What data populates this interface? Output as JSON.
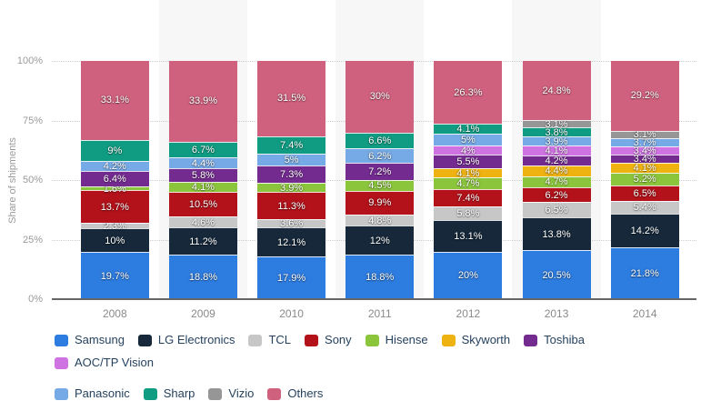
{
  "y_axis": {
    "title": "Share of shipments",
    "ticks": [
      {
        "label": "0%",
        "value": 0
      },
      {
        "label": "25%",
        "value": 25
      },
      {
        "label": "50%",
        "value": 50
      },
      {
        "label": "75%",
        "value": 75
      },
      {
        "label": "100%",
        "value": 100
      }
    ]
  },
  "chart_data": {
    "type": "bar",
    "stacked": true,
    "unit": "%",
    "title": "",
    "xlabel": "",
    "ylabel": "Share of shipments",
    "ylim": [
      0,
      100
    ],
    "grid": "dotted-horizontal",
    "legend_position": "bottom",
    "categories": [
      "2008",
      "2009",
      "2010",
      "2011",
      "2012",
      "2013",
      "2014"
    ],
    "series": [
      {
        "name": "Samsung",
        "color": "#2d7ce0",
        "values": [
          19.7,
          18.8,
          17.9,
          18.8,
          20,
          20.5,
          21.8
        ]
      },
      {
        "name": "LG Electronics",
        "color": "#16283a",
        "values": [
          10,
          11.2,
          12.1,
          12,
          13.1,
          13.8,
          14.2
        ]
      },
      {
        "name": "TCL",
        "color": "#c7c7c7",
        "values": [
          2.3,
          4.6,
          3.6,
          4.8,
          5.8,
          6.5,
          5.4
        ]
      },
      {
        "name": "Sony",
        "color": "#b3121a",
        "values": [
          13.7,
          10.5,
          11.3,
          9.9,
          7.4,
          6.2,
          6.5
        ]
      },
      {
        "name": "Hisense",
        "color": "#8bc53c",
        "values": [
          1.6,
          4.1,
          3.9,
          4.5,
          4.7,
          4.7,
          5.2
        ]
      },
      {
        "name": "Skyworth",
        "color": "#eeb211",
        "values": [
          0,
          0,
          0,
          0,
          4.1,
          4.4,
          4.1
        ]
      },
      {
        "name": "Toshiba",
        "color": "#742b90",
        "values": [
          6.4,
          5.8,
          7.3,
          7.2,
          5.5,
          4.2,
          3.4
        ]
      },
      {
        "name": "AOC/TP Vision",
        "color": "#cf72e2",
        "values": [
          0,
          0,
          0,
          0,
          4,
          4.1,
          3.4
        ]
      },
      {
        "name": "Panasonic",
        "color": "#76aae6",
        "values": [
          4.2,
          4.4,
          5,
          6.2,
          5,
          3.9,
          3.7
        ]
      },
      {
        "name": "Sharp",
        "color": "#109c82",
        "values": [
          9,
          6.7,
          7.4,
          6.6,
          4.1,
          3.8,
          0
        ]
      },
      {
        "name": "Vizio",
        "color": "#969696",
        "values": [
          0,
          0,
          0,
          0,
          0,
          3.1,
          3.1
        ]
      },
      {
        "name": "Others",
        "color": "#d0617e",
        "values": [
          33.1,
          33.9,
          31.5,
          30,
          26.3,
          24.8,
          29.2
        ]
      }
    ]
  }
}
